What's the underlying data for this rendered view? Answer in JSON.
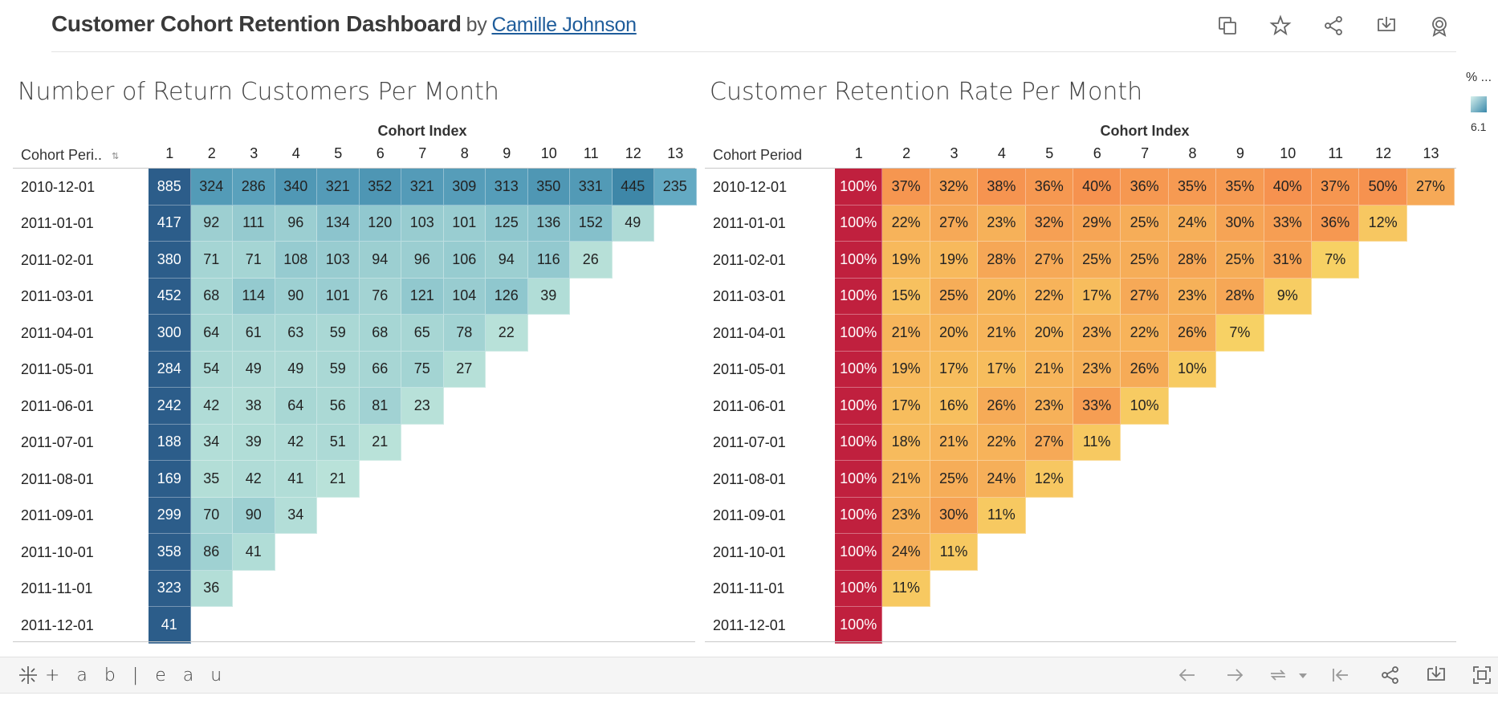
{
  "header": {
    "title": "Customer Cohort Retention Dashboard",
    "by": "by",
    "author": "Camille Johnson",
    "icons": [
      "duplicate-icon",
      "star-icon",
      "share-icon",
      "download-icon",
      "badge-icon"
    ]
  },
  "left": {
    "title": "Number of Return Customers Per Month",
    "axis_title": "Cohort Index",
    "row_header": "Cohort Peri..",
    "columns": [
      "1",
      "2",
      "3",
      "4",
      "5",
      "6",
      "7",
      "8",
      "9",
      "10",
      "11",
      "12",
      "13"
    ],
    "rows": [
      "2010-12-01",
      "2011-01-01",
      "2011-02-01",
      "2011-03-01",
      "2011-04-01",
      "2011-05-01",
      "2011-06-01",
      "2011-07-01",
      "2011-08-01",
      "2011-09-01",
      "2011-10-01",
      "2011-11-01",
      "2011-12-01"
    ],
    "values": [
      [
        885,
        324,
        286,
        340,
        321,
        352,
        321,
        309,
        313,
        350,
        331,
        445,
        235
      ],
      [
        417,
        92,
        111,
        96,
        134,
        120,
        103,
        101,
        125,
        136,
        152,
        49
      ],
      [
        380,
        71,
        71,
        108,
        103,
        94,
        96,
        106,
        94,
        116,
        26
      ],
      [
        452,
        68,
        114,
        90,
        101,
        76,
        121,
        104,
        126,
        39
      ],
      [
        300,
        64,
        61,
        63,
        59,
        68,
        65,
        78,
        22
      ],
      [
        284,
        54,
        49,
        49,
        59,
        66,
        75,
        27
      ],
      [
        242,
        42,
        38,
        64,
        56,
        81,
        23
      ],
      [
        188,
        34,
        39,
        42,
        51,
        21
      ],
      [
        169,
        35,
        42,
        41,
        21
      ],
      [
        299,
        70,
        90,
        34
      ],
      [
        358,
        86,
        41
      ],
      [
        323,
        36
      ],
      [
        41
      ]
    ]
  },
  "right": {
    "title": "Customer Retention Rate Per Month",
    "axis_title": "Cohort Index",
    "row_header": "Cohort Period",
    "columns": [
      "1",
      "2",
      "3",
      "4",
      "5",
      "6",
      "7",
      "8",
      "9",
      "10",
      "11",
      "12",
      "13"
    ],
    "rows": [
      "2010-12-01",
      "2011-01-01",
      "2011-02-01",
      "2011-03-01",
      "2011-04-01",
      "2011-05-01",
      "2011-06-01",
      "2011-07-01",
      "2011-08-01",
      "2011-09-01",
      "2011-10-01",
      "2011-11-01",
      "2011-12-01"
    ],
    "values": [
      [
        "100%",
        "37%",
        "32%",
        "38%",
        "36%",
        "40%",
        "36%",
        "35%",
        "35%",
        "40%",
        "37%",
        "50%",
        "27%"
      ],
      [
        "100%",
        "22%",
        "27%",
        "23%",
        "32%",
        "29%",
        "25%",
        "24%",
        "30%",
        "33%",
        "36%",
        "12%"
      ],
      [
        "100%",
        "19%",
        "19%",
        "28%",
        "27%",
        "25%",
        "25%",
        "28%",
        "25%",
        "31%",
        "7%"
      ],
      [
        "100%",
        "15%",
        "25%",
        "20%",
        "22%",
        "17%",
        "27%",
        "23%",
        "28%",
        "9%"
      ],
      [
        "100%",
        "21%",
        "20%",
        "21%",
        "20%",
        "23%",
        "22%",
        "26%",
        "7%"
      ],
      [
        "100%",
        "19%",
        "17%",
        "17%",
        "21%",
        "23%",
        "26%",
        "10%"
      ],
      [
        "100%",
        "17%",
        "16%",
        "26%",
        "23%",
        "33%",
        "10%"
      ],
      [
        "100%",
        "18%",
        "21%",
        "22%",
        "27%",
        "11%"
      ],
      [
        "100%",
        "21%",
        "25%",
        "24%",
        "12%"
      ],
      [
        "100%",
        "23%",
        "30%",
        "11%"
      ],
      [
        "100%",
        "24%",
        "11%"
      ],
      [
        "100%",
        "11%"
      ],
      [
        "100%"
      ]
    ]
  },
  "legend": {
    "label": "% ...",
    "value": "6.1"
  },
  "footer": {
    "brand": "+ a b | e a u",
    "toolbar_icons": [
      "undo-icon",
      "redo-icon",
      "revert-icon",
      "dropdown-arrow-icon",
      "reset-to-start-icon",
      "share-icon",
      "download-icon",
      "fullscreen-icon"
    ]
  },
  "colors": {
    "blue_dark": "#2c5d8a",
    "blue_mid": "#62a9c2",
    "blue_light": "#b9e2d9",
    "red_100": "#c0203e",
    "orange_high": "#f6924f",
    "yellow_low": "#f7d164"
  }
}
